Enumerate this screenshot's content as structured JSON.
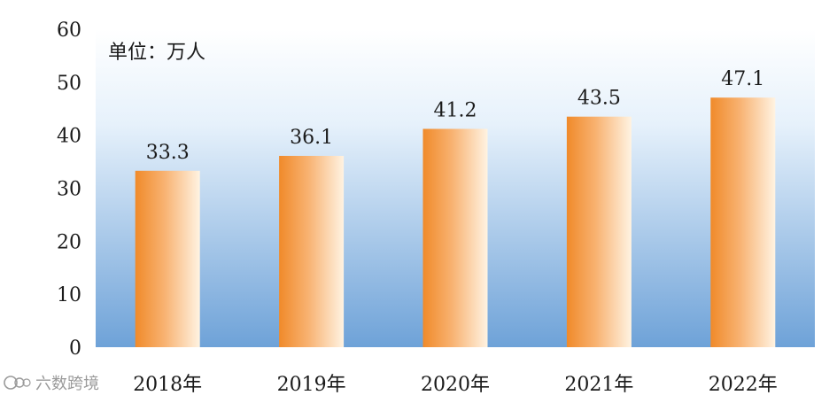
{
  "chart_data": {
    "type": "bar",
    "unit_label": "单位：万人",
    "categories": [
      "2018年",
      "2019年",
      "2020年",
      "2021年",
      "2022年"
    ],
    "values": [
      33.3,
      36.1,
      41.2,
      43.5,
      47.1
    ],
    "value_labels": [
      "33.3",
      "36.1",
      "41.2",
      "43.5",
      "47.1"
    ],
    "ylim": [
      0,
      60
    ],
    "yticks": [
      "0",
      "10",
      "20",
      "30",
      "40",
      "50",
      "60"
    ],
    "grid": false,
    "legend": "none",
    "colors": {
      "bar_dark": "#f08a2a",
      "bar_light": "#fff3e2",
      "bg_top": "#ffffff",
      "bg_bottom": "#6ea2d8"
    }
  },
  "watermark": {
    "text": "六数跨境",
    "icon": "logo-icon"
  }
}
